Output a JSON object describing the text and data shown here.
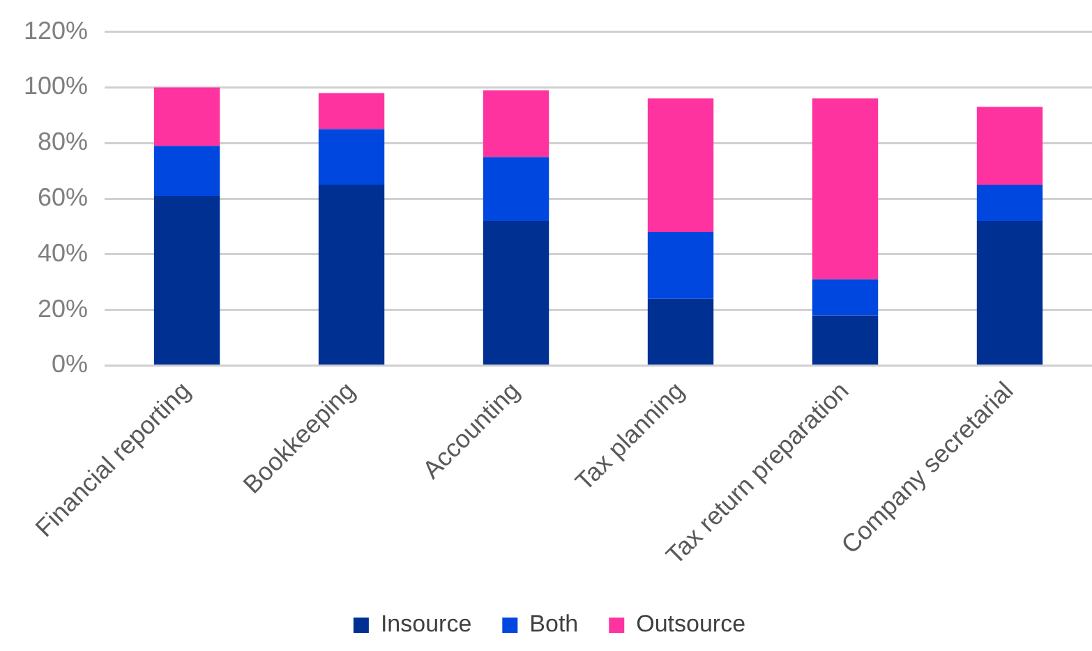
{
  "chart_data": {
    "type": "bar",
    "stacked": true,
    "categories": [
      "Financial reporting",
      "Bookkeeping",
      "Accounting",
      "Tax planning",
      "Tax return preparation",
      "Company secretarial"
    ],
    "series": [
      {
        "name": "Insource",
        "color": "#003092",
        "values": [
          61,
          65,
          52,
          24,
          18,
          52
        ]
      },
      {
        "name": "Both",
        "color": "#0047e0",
        "values": [
          18,
          20,
          23,
          24,
          13,
          13
        ]
      },
      {
        "name": "Outsource",
        "color": "#ff33a0",
        "values": [
          21,
          13,
          24,
          48,
          65,
          28
        ]
      }
    ],
    "ylim": [
      0,
      120
    ],
    "yticks": [
      {
        "value": 0,
        "label": "0%"
      },
      {
        "value": 20,
        "label": "20%"
      },
      {
        "value": 40,
        "label": "40%"
      },
      {
        "value": 60,
        "label": "60%"
      },
      {
        "value": 80,
        "label": "80%"
      },
      {
        "value": 100,
        "label": "100%"
      },
      {
        "value": 120,
        "label": "120%"
      }
    ],
    "grid": "y",
    "legend": "bottom"
  }
}
